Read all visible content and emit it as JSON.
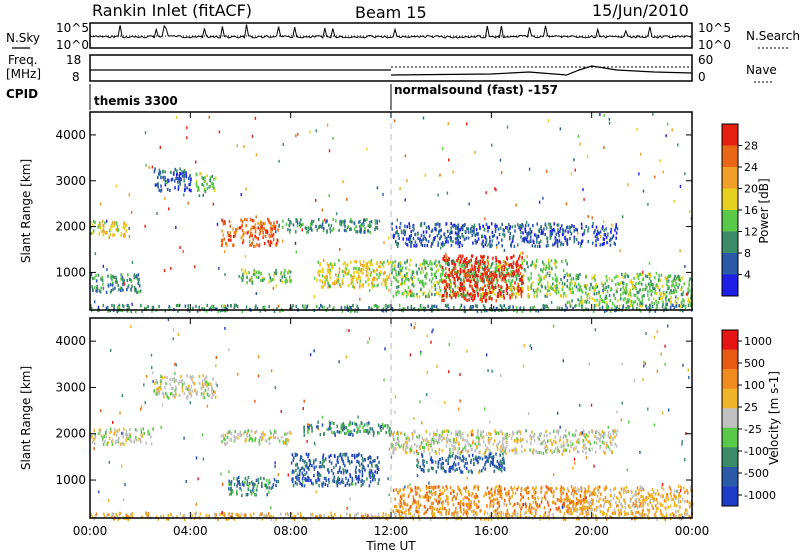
{
  "header": {
    "title": "Rankin Inlet (fitACF)",
    "beam": "Beam 15",
    "date": "15/Jun/2010"
  },
  "top_panels": {
    "nsky_label": "N.Sky",
    "nsky_ticks": [
      "10^5",
      "10^0"
    ],
    "nsearch_label": "N.Search",
    "freq_label": "Freq.",
    "freq_unit": "[MHz]",
    "freq_ticks": [
      "18",
      "8"
    ],
    "nave_ticks": [
      "60",
      "0"
    ],
    "nave_label": "Nave",
    "cpid_label": "CPID",
    "cpid_left": "themis 3300",
    "cpid_right": "normalsound (fast) -157"
  },
  "x_ticks": [
    "00:00",
    "04:00",
    "08:00",
    "12:00",
    "16:00",
    "20:00",
    "00:00"
  ],
  "x_label": "Time UT",
  "power_panel": {
    "ylabel": "Slant Range [km]",
    "y_ticks": [
      "1000",
      "2000",
      "3000",
      "4000"
    ],
    "colorbar_label": "Power [dB]",
    "colorbar_ticks": [
      "4",
      "8",
      "12",
      "16",
      "20",
      "24",
      "28"
    ],
    "colors": [
      "#1e1ee6",
      "#2a5aa8",
      "#3c8c6a",
      "#5ac848",
      "#e6d020",
      "#f0a028",
      "#e86818",
      "#e62010"
    ]
  },
  "velocity_panel": {
    "ylabel": "Slant Range [km]",
    "y_ticks": [
      "1000",
      "2000",
      "3000",
      "4000"
    ],
    "colorbar_label": "Velocity [m s-1]",
    "colorbar_ticks": [
      "1000",
      "500",
      "100",
      "25",
      "-25",
      "-100",
      "-500",
      "-1000"
    ],
    "colors": [
      "#1e3cc8",
      "#2a5aa8",
      "#3c8c6a",
      "#5ac848",
      "#c0c0c0",
      "#f0b428",
      "#f08c1e",
      "#e65a14",
      "#e61414"
    ]
  },
  "chart_data": {
    "type": "heatmap",
    "title": "Rankin Inlet (fitACF)",
    "x_range_hours": [
      0,
      24
    ],
    "y_range_km": [
      180,
      4500
    ],
    "power_regions": [
      {
        "t0": 0.0,
        "t1": 1.5,
        "r0": 1800,
        "r1": 2150,
        "level": 4
      },
      {
        "t0": 0.0,
        "t1": 2.0,
        "r0": 600,
        "r1": 1000,
        "level": 2
      },
      {
        "t0": 2.5,
        "t1": 4.0,
        "r0": 2800,
        "r1": 3300,
        "level": 1
      },
      {
        "t0": 4.2,
        "t1": 5.0,
        "r0": 2800,
        "r1": 3200,
        "level": 3
      },
      {
        "t0": 5.2,
        "t1": 7.5,
        "r0": 1600,
        "r1": 2200,
        "level": 6
      },
      {
        "t0": 6.0,
        "t1": 8.0,
        "r0": 800,
        "r1": 1100,
        "level": 3
      },
      {
        "t0": 7.5,
        "t1": 11.5,
        "r0": 1900,
        "r1": 2200,
        "level": 2
      },
      {
        "t0": 9.0,
        "t1": 12.0,
        "r0": 700,
        "r1": 1300,
        "level": 4
      },
      {
        "t0": 12.0,
        "t1": 19.0,
        "r0": 500,
        "r1": 1300,
        "level": 3
      },
      {
        "t0": 14.0,
        "t1": 17.2,
        "r0": 400,
        "r1": 1400,
        "level": 7
      },
      {
        "t0": 12.0,
        "t1": 21.0,
        "r0": 1600,
        "r1": 2100,
        "level": 1
      },
      {
        "t0": 19.0,
        "t1": 24.0,
        "r0": 300,
        "r1": 1000,
        "level": 3
      },
      {
        "t0": 0.0,
        "t1": 24.0,
        "r0": 180,
        "r1": 320,
        "level": 2
      }
    ],
    "velocity_regions": [
      {
        "t0": 0.0,
        "t1": 2.5,
        "r0": 1800,
        "r1": 2150,
        "level": 4
      },
      {
        "t0": 2.5,
        "t1": 5.0,
        "r0": 2800,
        "r1": 3300,
        "level": 4
      },
      {
        "t0": 5.2,
        "t1": 8.0,
        "r0": 1800,
        "r1": 2100,
        "level": 4
      },
      {
        "t0": 5.5,
        "t1": 7.5,
        "r0": 700,
        "r1": 1100,
        "level": 2
      },
      {
        "t0": 8.0,
        "t1": 11.5,
        "r0": 900,
        "r1": 1600,
        "level": 1
      },
      {
        "t0": 8.5,
        "t1": 12.0,
        "r0": 2000,
        "r1": 2300,
        "level": 2
      },
      {
        "t0": 12.0,
        "t1": 20.0,
        "r0": 300,
        "r1": 900,
        "level": 6
      },
      {
        "t0": 12.0,
        "t1": 21.0,
        "r0": 1600,
        "r1": 2100,
        "level": 4
      },
      {
        "t0": 13.0,
        "t1": 16.5,
        "r0": 1200,
        "r1": 1600,
        "level": 1
      },
      {
        "t0": 19.0,
        "t1": 24.0,
        "r0": 300,
        "r1": 900,
        "level": 5
      },
      {
        "t0": 0.0,
        "t1": 24.0,
        "r0": 180,
        "r1": 320,
        "level": 5
      }
    ],
    "freq_mhz_mean": 11,
    "nave_mean": 40
  }
}
